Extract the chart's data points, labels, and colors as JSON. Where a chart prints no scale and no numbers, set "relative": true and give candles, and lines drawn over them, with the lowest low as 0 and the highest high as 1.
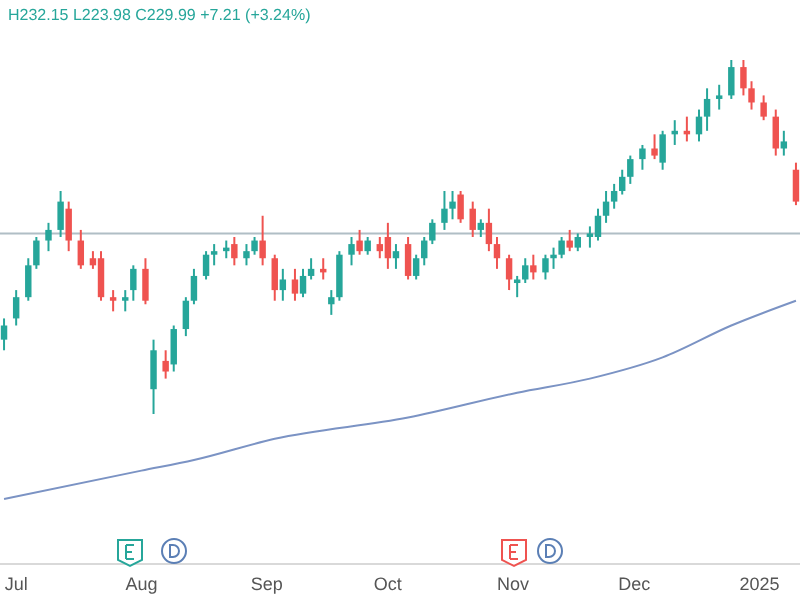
{
  "chart_data": {
    "type": "candlestick",
    "relative": true,
    "subtitle": "H232.15 L223.98 C229.99 +7.21 (+3.24%)",
    "x": [
      "2024-06-28",
      "2024-07-01",
      "2024-07-04",
      "2024-07-06",
      "2024-07-09",
      "2024-07-12",
      "2024-07-14",
      "2024-07-17",
      "2024-07-20",
      "2024-07-22",
      "2024-07-25",
      "2024-07-28",
      "2024-07-30",
      "2024-08-02",
      "2024-08-04",
      "2024-08-07",
      "2024-08-09",
      "2024-08-12",
      "2024-08-14",
      "2024-08-17",
      "2024-08-19",
      "2024-08-22",
      "2024-08-24",
      "2024-08-27",
      "2024-08-29",
      "2024-08-31",
      "2024-09-03",
      "2024-09-05",
      "2024-09-08",
      "2024-09-10",
      "2024-09-12",
      "2024-09-15",
      "2024-09-17",
      "2024-09-19",
      "2024-09-22",
      "2024-09-24",
      "2024-09-26",
      "2024-09-29",
      "2024-10-01",
      "2024-10-03",
      "2024-10-06",
      "2024-10-08",
      "2024-10-10",
      "2024-10-12",
      "2024-10-15",
      "2024-10-17",
      "2024-10-19",
      "2024-10-22",
      "2024-10-24",
      "2024-10-26",
      "2024-10-28",
      "2024-10-31",
      "2024-11-02",
      "2024-11-04",
      "2024-11-06",
      "2024-11-09",
      "2024-11-11",
      "2024-11-13",
      "2024-11-15",
      "2024-11-17",
      "2024-11-20",
      "2024-11-22",
      "2024-11-24",
      "2024-11-26",
      "2024-11-28",
      "2024-11-30",
      "2024-12-03",
      "2024-12-06",
      "2024-12-08",
      "2024-12-11",
      "2024-12-14",
      "2024-12-17",
      "2024-12-19",
      "2024-12-22",
      "2024-12-25",
      "2024-12-28",
      "2024-12-30",
      "2025-01-02",
      "2025-01-05",
      "2025-01-07",
      "2025-01-10"
    ],
    "ohlc": [
      [
        0.21,
        0.27,
        0.18,
        0.25
      ],
      [
        0.27,
        0.35,
        0.25,
        0.33
      ],
      [
        0.33,
        0.44,
        0.32,
        0.42
      ],
      [
        0.42,
        0.5,
        0.41,
        0.49
      ],
      [
        0.49,
        0.54,
        0.46,
        0.52
      ],
      [
        0.52,
        0.63,
        0.5,
        0.6
      ],
      [
        0.58,
        0.6,
        0.46,
        0.49
      ],
      [
        0.49,
        0.52,
        0.41,
        0.42
      ],
      [
        0.44,
        0.46,
        0.41,
        0.42
      ],
      [
        0.44,
        0.46,
        0.32,
        0.33
      ],
      [
        0.33,
        0.35,
        0.29,
        0.32
      ],
      [
        0.32,
        0.35,
        0.29,
        0.33
      ],
      [
        0.35,
        0.42,
        0.32,
        0.41
      ],
      [
        0.41,
        0.44,
        0.31,
        0.32
      ],
      [
        0.07,
        0.21,
        0,
        0.18
      ],
      [
        0.15,
        0.18,
        0.1,
        0.12
      ],
      [
        0.14,
        0.25,
        0.12,
        0.24
      ],
      [
        0.24,
        0.33,
        0.22,
        0.32
      ],
      [
        0.32,
        0.41,
        0.31,
        0.39
      ],
      [
        0.39,
        0.46,
        0.38,
        0.45
      ],
      [
        0.45,
        0.48,
        0.42,
        0.46
      ],
      [
        0.46,
        0.49,
        0.44,
        0.47
      ],
      [
        0.48,
        0.5,
        0.42,
        0.44
      ],
      [
        0.44,
        0.48,
        0.42,
        0.46
      ],
      [
        0.46,
        0.5,
        0.45,
        0.49
      ],
      [
        0.49,
        0.56,
        0.42,
        0.44
      ],
      [
        0.44,
        0.45,
        0.32,
        0.35
      ],
      [
        0.35,
        0.41,
        0.32,
        0.38
      ],
      [
        0.38,
        0.41,
        0.32,
        0.34
      ],
      [
        0.34,
        0.41,
        0.33,
        0.39
      ],
      [
        0.39,
        0.44,
        0.38,
        0.41
      ],
      [
        0.41,
        0.44,
        0.38,
        0.4
      ],
      [
        0.31,
        0.35,
        0.28,
        0.33
      ],
      [
        0.33,
        0.46,
        0.32,
        0.45
      ],
      [
        0.45,
        0.5,
        0.42,
        0.48
      ],
      [
        0.49,
        0.52,
        0.45,
        0.46
      ],
      [
        0.46,
        0.5,
        0.45,
        0.49
      ],
      [
        0.48,
        0.5,
        0.44,
        0.46
      ],
      [
        0.5,
        0.54,
        0.41,
        0.44
      ],
      [
        0.44,
        0.48,
        0.41,
        0.46
      ],
      [
        0.48,
        0.5,
        0.38,
        0.39
      ],
      [
        0.39,
        0.45,
        0.38,
        0.44
      ],
      [
        0.44,
        0.5,
        0.42,
        0.49
      ],
      [
        0.49,
        0.55,
        0.48,
        0.54
      ],
      [
        0.54,
        0.63,
        0.52,
        0.58
      ],
      [
        0.58,
        0.63,
        0.55,
        0.6
      ],
      [
        0.62,
        0.63,
        0.54,
        0.55
      ],
      [
        0.58,
        0.6,
        0.5,
        0.52
      ],
      [
        0.52,
        0.55,
        0.5,
        0.54
      ],
      [
        0.54,
        0.58,
        0.46,
        0.48
      ],
      [
        0.48,
        0.5,
        0.41,
        0.44
      ],
      [
        0.44,
        0.45,
        0.35,
        0.38
      ],
      [
        0.37,
        0.39,
        0.33,
        0.38
      ],
      [
        0.38,
        0.44,
        0.37,
        0.42
      ],
      [
        0.42,
        0.45,
        0.38,
        0.4
      ],
      [
        0.4,
        0.45,
        0.38,
        0.44
      ],
      [
        0.44,
        0.47,
        0.41,
        0.45
      ],
      [
        0.45,
        0.5,
        0.44,
        0.49
      ],
      [
        0.49,
        0.52,
        0.46,
        0.47
      ],
      [
        0.47,
        0.51,
        0.46,
        0.5
      ],
      [
        0.5,
        0.53,
        0.47,
        0.51
      ],
      [
        0.5,
        0.58,
        0.49,
        0.56
      ],
      [
        0.56,
        0.63,
        0.54,
        0.6
      ],
      [
        0.6,
        0.65,
        0.58,
        0.63
      ],
      [
        0.63,
        0.69,
        0.62,
        0.67
      ],
      [
        0.67,
        0.73,
        0.65,
        0.72
      ],
      [
        0.72,
        0.76,
        0.69,
        0.75
      ],
      [
        0.75,
        0.79,
        0.72,
        0.73
      ],
      [
        0.71,
        0.8,
        0.69,
        0.79
      ],
      [
        0.79,
        0.83,
        0.76,
        0.8
      ],
      [
        0.8,
        0.84,
        0.77,
        0.79
      ],
      [
        0.79,
        0.86,
        0.77,
        0.84
      ],
      [
        0.84,
        0.92,
        0.8,
        0.89
      ],
      [
        0.89,
        0.93,
        0.86,
        0.9
      ],
      [
        0.9,
        1,
        0.89,
        0.98
      ],
      [
        0.98,
        1,
        0.9,
        0.92
      ],
      [
        0.92,
        0.94,
        0.86,
        0.88
      ],
      [
        0.88,
        0.9,
        0.83,
        0.84
      ],
      [
        0.84,
        0.86,
        0.73,
        0.75
      ],
      [
        0.75,
        0.8,
        0.73,
        0.77
      ],
      [
        0.69,
        0.71,
        0.59,
        0.6
      ]
    ],
    "series": [
      {
        "type": "line",
        "color": "#7b93c4",
        "x": [
          "2024-06-28",
          "2024-08-01",
          "2024-08-14",
          "2024-09-03",
          "2024-10-06",
          "2024-11-02",
          "2024-11-20",
          "2024-12-08",
          "2024-12-25",
          "2025-01-10"
        ],
        "values": [
          -0.24,
          -0.16,
          -0.13,
          -0.07,
          -0.01,
          0.06,
          0.1,
          0.16,
          0.25,
          0.32
        ]
      }
    ],
    "ref_lines": [
      {
        "axis": "y",
        "value": 0.51,
        "color": "#b0bec5"
      }
    ],
    "xlim": [
      "2024-06-27",
      "2025-01-11"
    ],
    "xticks": [
      {
        "value": "2024-07-01",
        "label": "Jul"
      },
      {
        "value": "2024-08-01",
        "label": "Aug"
      },
      {
        "value": "2024-09-01",
        "label": "Sep"
      },
      {
        "value": "2024-10-01",
        "label": "Oct"
      },
      {
        "value": "2024-11-01",
        "label": "Nov"
      },
      {
        "value": "2024-12-01",
        "label": "Dec"
      },
      {
        "value": "2025-01-01",
        "label": "2025"
      }
    ],
    "tick_labels": "x"
  }
}
